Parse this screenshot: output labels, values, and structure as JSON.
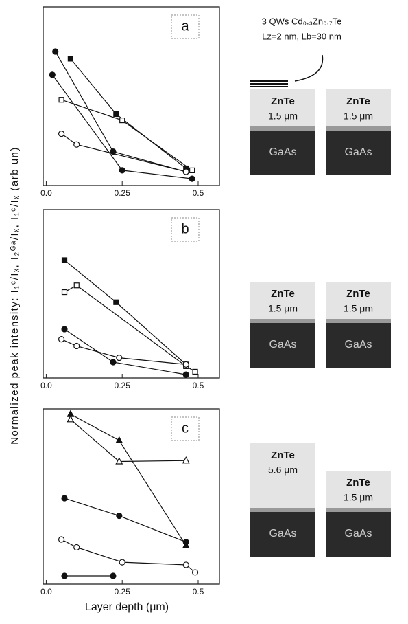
{
  "chart_data": [
    {
      "type": "scatter",
      "panel_label": "a",
      "ylabel": "Normalized peak intensity: I₁ᶜ/Iₓ, I₂ᴳᵃ/Iₓ, I₁ᶜ/Iₓ (arb un)",
      "xlim": [
        -0.01,
        0.57
      ],
      "ylim": [
        0,
        10
      ],
      "xticks": [
        {
          "value": 0,
          "label": "0.0"
        },
        0.25,
        0.5
      ],
      "series": [
        {
          "color": "#111111",
          "marker": "circle",
          "filled": true,
          "x": [
            0.03,
            0.22,
            0.46
          ],
          "values": [
            7.5,
            1.9,
            0.77
          ]
        },
        {
          "color": "#111111",
          "marker": "circle",
          "filled": true,
          "x": [
            0.02,
            0.25,
            0.48
          ],
          "values": [
            6.2,
            0.85,
            0.38
          ]
        },
        {
          "color": "#111111",
          "marker": "square",
          "filled": true,
          "x": [
            0.08,
            0.23,
            0.46
          ],
          "values": [
            7.1,
            4.0,
            0.96
          ]
        },
        {
          "color": "#111111",
          "marker": "square",
          "filled": false,
          "x": [
            0.05,
            0.25,
            0.48
          ],
          "values": [
            4.8,
            3.65,
            0.85
          ]
        },
        {
          "color": "#111111",
          "marker": "circle",
          "filled": false,
          "x": [
            0.05,
            0.1,
            0.46
          ],
          "values": [
            2.9,
            2.3,
            0.77
          ]
        }
      ],
      "qw_label": [
        "3 QWs Cd₀.₃Zn₀.₇Te",
        "Lz=2 nm, Lb=30 nm"
      ],
      "samples": [
        {
          "layer": "ZnTe",
          "thickness": "1.5 μm",
          "substrate": "GaAs"
        },
        {
          "layer": "ZnTe",
          "thickness": "1.5 μm",
          "substrate": "GaAs"
        }
      ]
    },
    {
      "type": "scatter",
      "panel_label": "b",
      "xlim": [
        -0.01,
        0.57
      ],
      "ylim": [
        0,
        10
      ],
      "xticks": [
        {
          "value": 0,
          "label": "0.0"
        },
        0.25,
        0.5
      ],
      "series": [
        {
          "color": "#111111",
          "marker": "square",
          "filled": true,
          "x": [
            0.06,
            0.23,
            0.46
          ],
          "values": [
            7.0,
            4.5,
            0.8
          ]
        },
        {
          "color": "#111111",
          "marker": "square",
          "filled": false,
          "x": [
            0.06,
            0.1,
            0.46,
            0.49
          ],
          "values": [
            5.1,
            5.5,
            0.7,
            0.37
          ]
        },
        {
          "color": "#111111",
          "marker": "circle",
          "filled": true,
          "x": [
            0.06,
            0.22,
            0.46
          ],
          "values": [
            2.9,
            0.94,
            0.2
          ]
        },
        {
          "color": "#111111",
          "marker": "circle",
          "filled": false,
          "x": [
            0.05,
            0.1,
            0.24,
            0.46
          ],
          "values": [
            2.3,
            1.9,
            1.2,
            0.8
          ]
        }
      ],
      "samples": [
        {
          "layer": "ZnTe",
          "thickness": "1.5 μm",
          "substrate": "GaAs"
        },
        {
          "layer": "ZnTe",
          "thickness": "1.5 μm",
          "substrate": "GaAs"
        }
      ]
    },
    {
      "type": "scatter",
      "panel_label": "c",
      "xlabel": "Layer depth (μm)",
      "xlim": [
        -0.01,
        0.57
      ],
      "ylim": [
        0,
        10
      ],
      "xticks": [
        {
          "value": 0,
          "label": "0.0"
        },
        0.25,
        0.5
      ],
      "series": [
        {
          "color": "#111111",
          "marker": "triangle",
          "filled": true,
          "x": [
            0.08,
            0.24,
            0.46
          ],
          "values": [
            9.7,
            8.2,
            2.2
          ]
        },
        {
          "color": "#111111",
          "marker": "triangle",
          "filled": false,
          "x": [
            0.08,
            0.24,
            0.46
          ],
          "values": [
            9.4,
            7.0,
            7.05
          ]
        },
        {
          "color": "#111111",
          "marker": "circle",
          "filled": true,
          "x": [
            0.06,
            0.24,
            0.46
          ],
          "values": [
            4.9,
            3.9,
            2.4
          ]
        },
        {
          "color": "#111111",
          "marker": "circle",
          "filled": false,
          "x": [
            0.05,
            0.1,
            0.25,
            0.46,
            0.49
          ],
          "values": [
            2.55,
            2.1,
            1.25,
            1.1,
            0.67
          ]
        },
        {
          "color": "#111111",
          "marker": "circle",
          "filled": true,
          "x": [
            0.06,
            0.22
          ],
          "values": [
            0.47,
            0.47
          ]
        }
      ],
      "samples": [
        {
          "layer": "ZnTe",
          "thickness": "5.6 μm",
          "substrate": "GaAs"
        },
        {
          "layer": "ZnTe",
          "thickness": "1.5 μm",
          "substrate": "GaAs"
        }
      ]
    }
  ]
}
